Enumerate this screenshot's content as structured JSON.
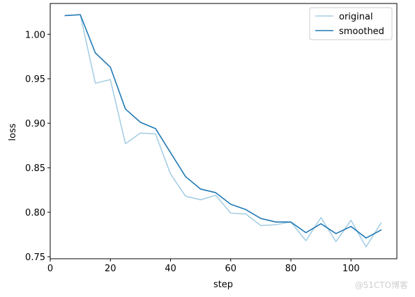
{
  "chart_data": {
    "type": "line",
    "x": [
      5,
      10,
      15,
      20,
      25,
      30,
      35,
      40,
      45,
      50,
      55,
      60,
      65,
      70,
      75,
      80,
      85,
      90,
      95,
      100,
      105,
      110
    ],
    "series": [
      {
        "name": "original",
        "color": "#a6cee3",
        "values": [
          1.021,
          1.022,
          0.945,
          0.949,
          0.877,
          0.889,
          0.888,
          0.843,
          0.818,
          0.814,
          0.819,
          0.799,
          0.798,
          0.785,
          0.786,
          0.789,
          0.768,
          0.794,
          0.767,
          0.791,
          0.761,
          0.788
        ]
      },
      {
        "name": "smoothed",
        "color": "#1f78b4",
        "values": [
          1.021,
          1.022,
          0.979,
          0.963,
          0.916,
          0.901,
          0.894,
          0.867,
          0.84,
          0.826,
          0.822,
          0.809,
          0.803,
          0.793,
          0.789,
          0.789,
          0.777,
          0.787,
          0.776,
          0.784,
          0.771,
          0.78
        ]
      }
    ],
    "xlabel": "step",
    "ylabel": "loss",
    "xlim": [
      0,
      115.25
    ],
    "ylim": [
      0.7477,
      1.0346
    ],
    "xticks": [
      0,
      20,
      40,
      60,
      80,
      100
    ],
    "yticks": [
      0.75,
      0.8,
      0.85,
      0.9,
      0.95,
      1.0
    ],
    "xtick_labels": [
      "0",
      "20",
      "40",
      "60",
      "80",
      "100"
    ],
    "ytick_labels": [
      "0.75",
      "0.80",
      "0.85",
      "0.90",
      "0.95",
      "1.00"
    ],
    "grid": false,
    "legend_position": "top-right"
  },
  "watermark": "@51CTO博客"
}
